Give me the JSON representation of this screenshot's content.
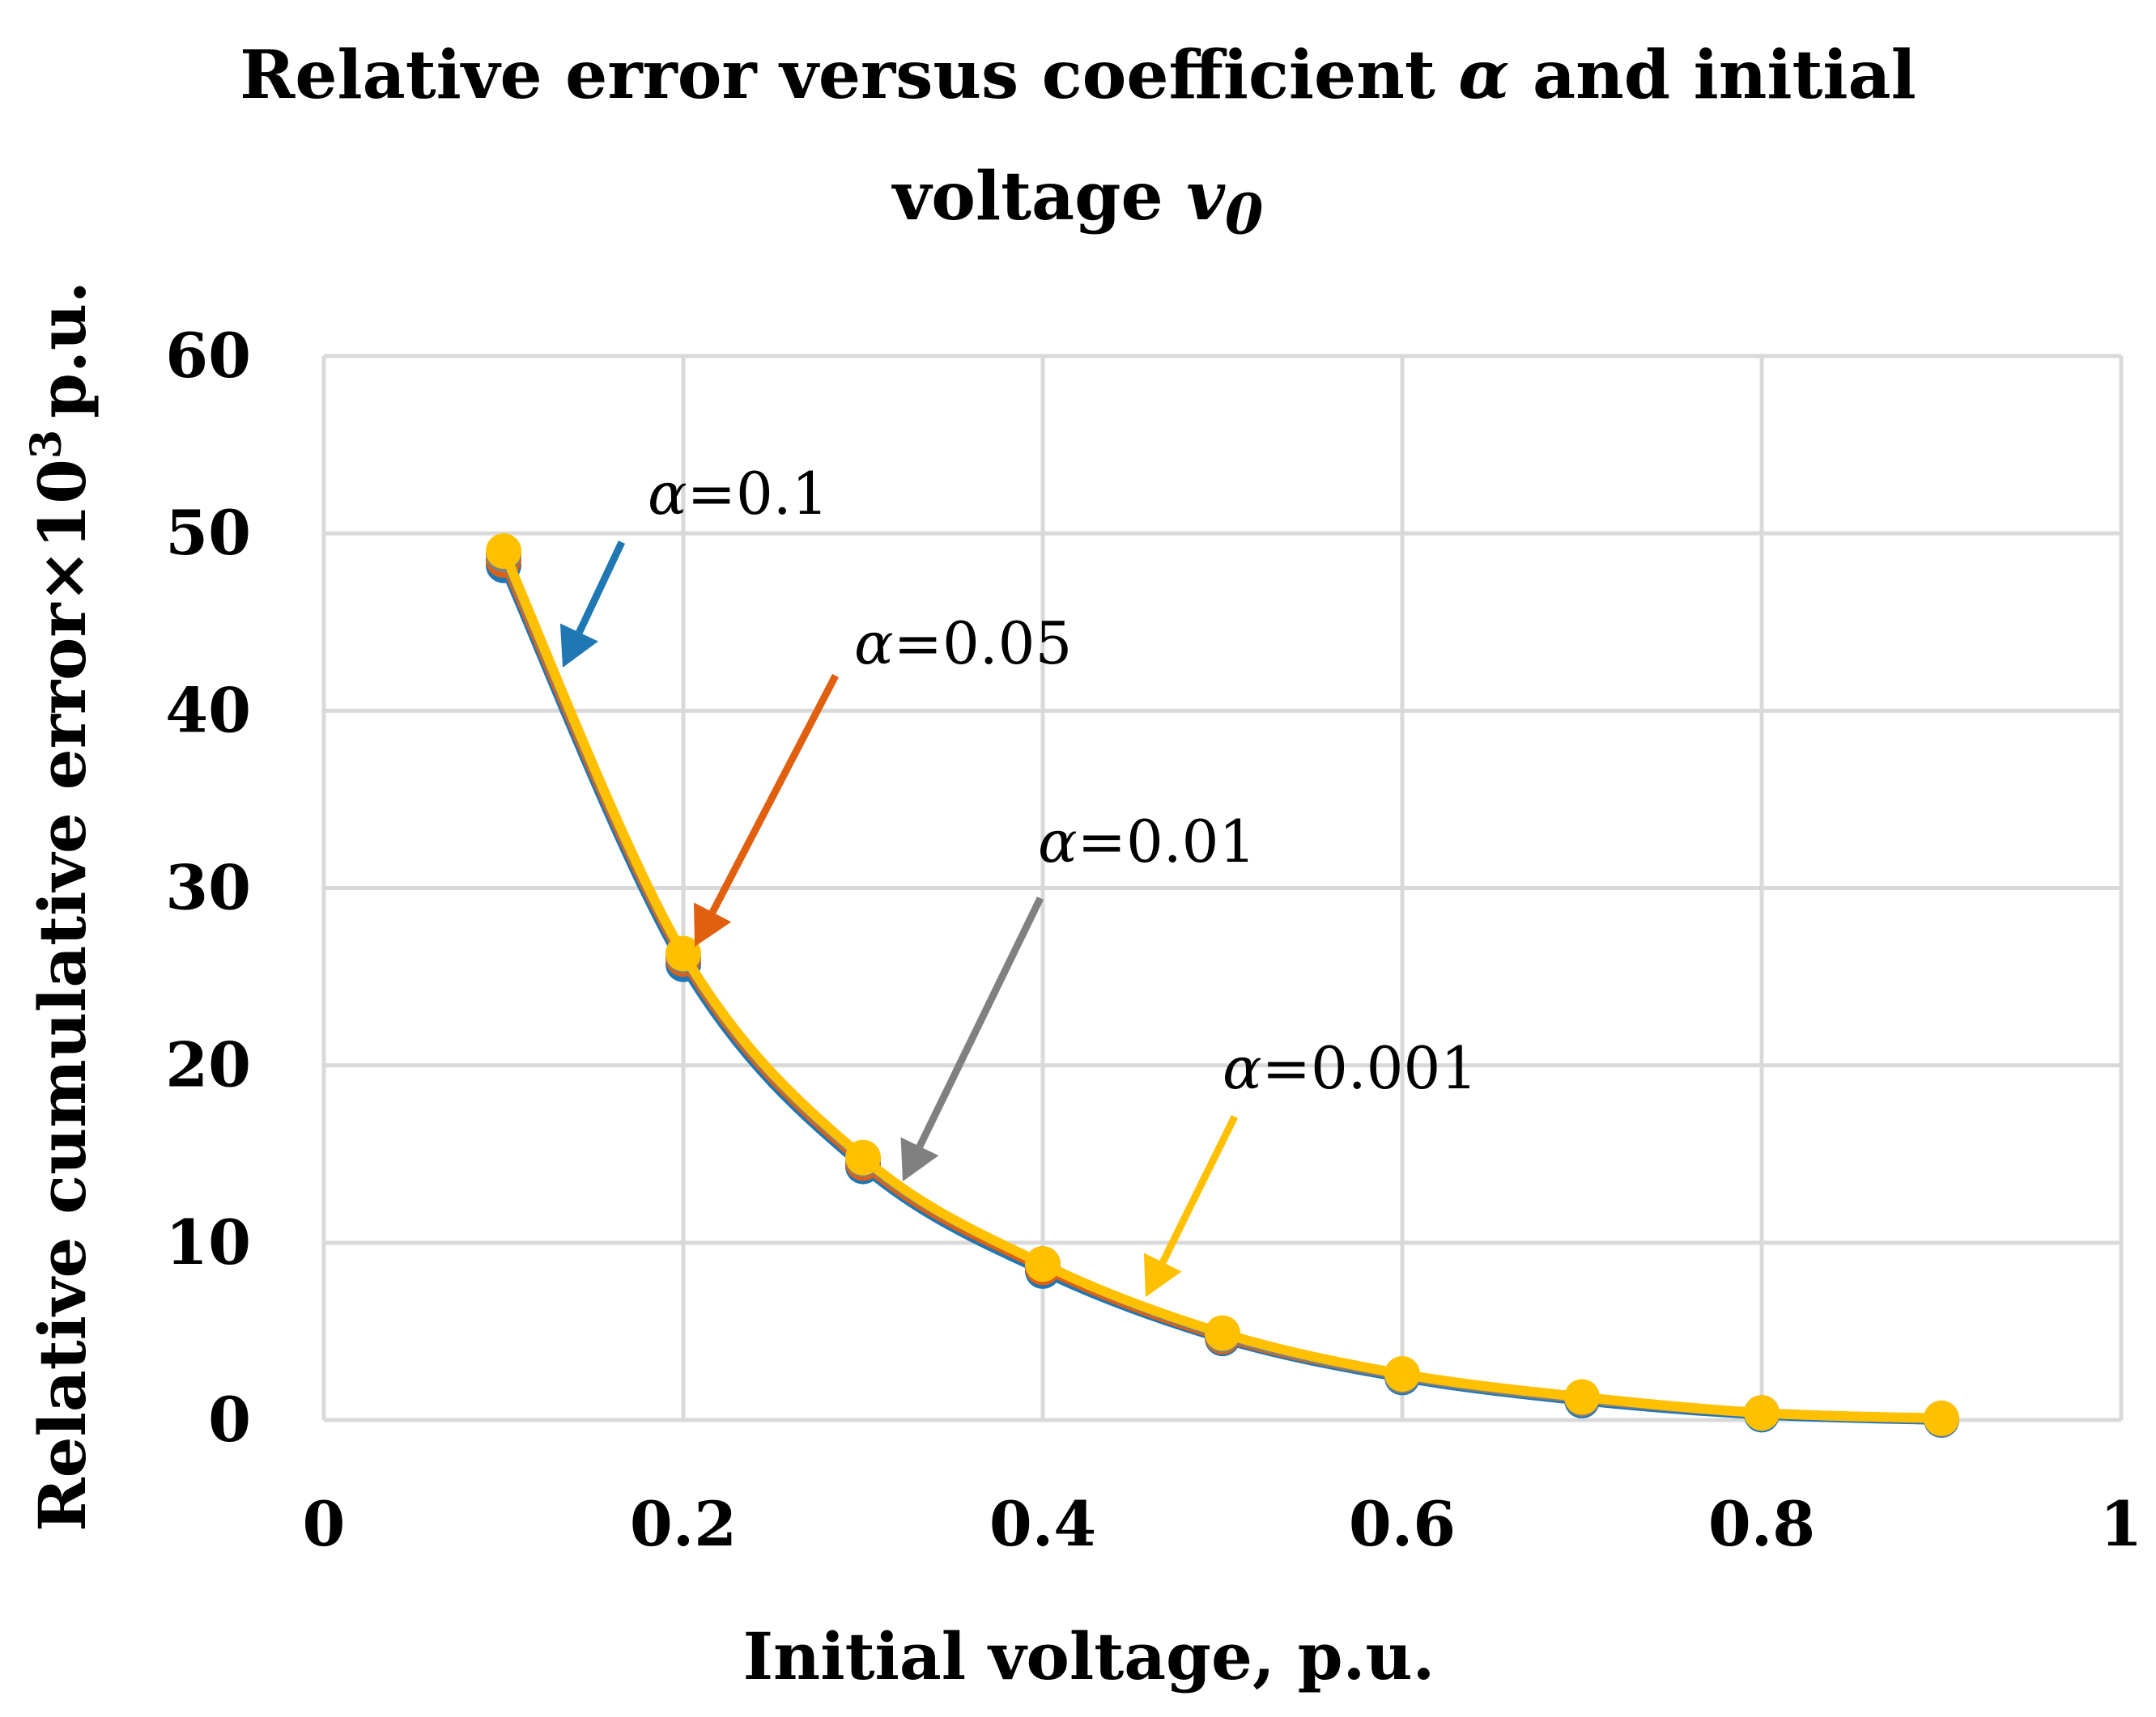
{
  "chart_data": {
    "type": "line",
    "title_line1": "Relative error versus coefficient",
    "title_alpha": "α",
    "title_and": "and initial",
    "title_line2": "voltage",
    "title_v": "v",
    "title_v_sub": "0",
    "xlabel": "Initial voltage, p.u.",
    "ylabel": "Relative cumulative error×10",
    "ylabel_sup": "3",
    "ylabel_unit": "p.u.",
    "xlim": [
      0,
      1
    ],
    "ylim": [
      0,
      60
    ],
    "xticks": [
      "0",
      "0.2",
      "0.4",
      "0.6",
      "0.8",
      "1"
    ],
    "yticks": [
      "0",
      "10",
      "20",
      "30",
      "40",
      "50",
      "60"
    ],
    "grid": true,
    "x": [
      0.1,
      0.2,
      0.3,
      0.4,
      0.5,
      0.6,
      0.7,
      0.8,
      0.9
    ],
    "series": [
      {
        "name": "α=0.1",
        "color": "#1f77b4",
        "values": [
          48.2,
          25.7,
          14.3,
          8.4,
          4.6,
          2.4,
          1.1,
          0.3,
          0.0
        ]
      },
      {
        "name": "α=0.05",
        "color": "#e06010",
        "values": [
          48.5,
          26.0,
          14.5,
          8.6,
          4.7,
          2.5,
          1.2,
          0.4,
          0.05
        ]
      },
      {
        "name": "α=0.01",
        "color": "#808080",
        "values": [
          48.8,
          26.2,
          14.7,
          8.8,
          4.8,
          2.5,
          1.2,
          0.4,
          0.05
        ]
      },
      {
        "name": "α=0.001",
        "color": "#ffc000",
        "values": [
          49.0,
          26.3,
          14.8,
          8.8,
          4.9,
          2.6,
          1.3,
          0.4,
          0.1
        ]
      }
    ],
    "annotations": [
      {
        "greek": "α",
        "text": "=0.1",
        "color": "#1f77b4"
      },
      {
        "greek": "α",
        "text": "=0.05",
        "color": "#e06010"
      },
      {
        "greek": "α",
        "text": "=0.01",
        "color": "#808080"
      },
      {
        "greek": "α",
        "text": "=0.001",
        "color": "#ffc000"
      }
    ]
  }
}
